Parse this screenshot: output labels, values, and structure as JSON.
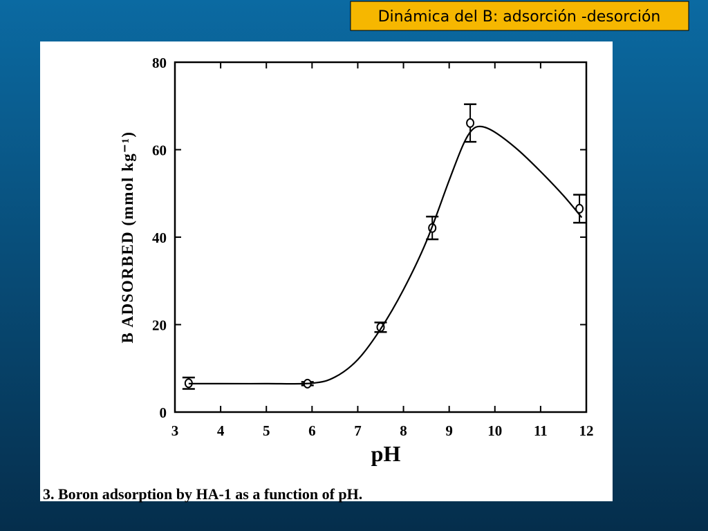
{
  "slide_title": "Dinámica del B: adsorción -desorción",
  "chart_data": {
    "type": "scatter",
    "xlabel": "pH",
    "ylabel": "B ADSORBED (mmol kg⁻¹)",
    "caption": "3. Boron adsorption by HA-1 as a function of pH.",
    "xlim": [
      3,
      12
    ],
    "xticks": [
      3,
      4,
      5,
      6,
      7,
      8,
      9,
      10,
      11,
      12
    ],
    "ylim": [
      0,
      80
    ],
    "yticks": [
      0,
      20,
      40,
      60,
      80
    ],
    "grid": false,
    "series": [
      {
        "type": "scatter",
        "color": "#000000",
        "x": [
          3.3,
          5.9,
          7.5,
          8.63,
          9.46,
          11.85
        ],
        "values": [
          6.6,
          6.5,
          19.4,
          42.1,
          66.1,
          46.5
        ],
        "errors": [
          1.3,
          0.4,
          1.1,
          2.6,
          4.3,
          3.2
        ]
      },
      {
        "type": "line",
        "color": "#000000",
        "x": [
          3.3,
          4,
          5,
          6,
          6.5,
          7,
          7.5,
          8,
          8.5,
          9,
          9.3,
          9.5,
          9.7,
          10,
          10.5,
          11,
          11.5,
          11.9
        ],
        "values": [
          6.5,
          6.5,
          6.5,
          6.6,
          8,
          12,
          19,
          28,
          39,
          53,
          61,
          64.5,
          65.3,
          64,
          60,
          55,
          49.5,
          44.5
        ]
      }
    ]
  }
}
